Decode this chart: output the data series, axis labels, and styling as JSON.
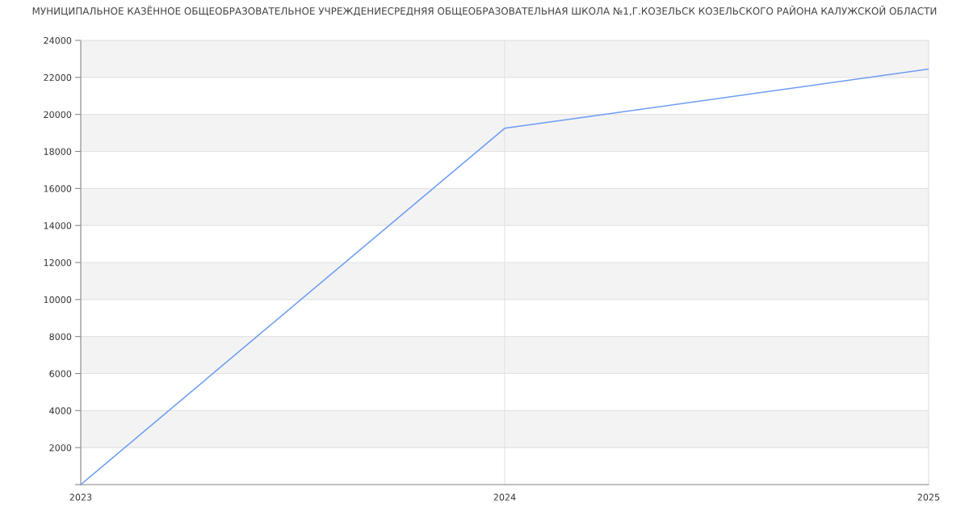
{
  "chart_data": {
    "type": "line",
    "title": "МУНИЦИПАЛЬНОЕ КАЗЁННОЕ ОБЩЕОБРАЗОВАТЕЛЬНОЕ УЧРЕЖДЕНИЕСРЕДНЯЯ ОБЩЕОБРАЗОВАТЕЛЬНАЯ ШКОЛА №1,Г.КОЗЕЛЬСК КОЗЕЛЬСКОГО РАЙОНА КАЛУЖСКОЙ ОБЛАСТИ",
    "x": [
      2023,
      2024,
      2025
    ],
    "series": [
      {
        "color": "#6b9cf3",
        "values": [
          0,
          19250,
          22450
        ]
      }
    ],
    "xlim": [
      2023,
      2025
    ],
    "xticks": [
      2023,
      2024,
      2025
    ],
    "ylim": [
      0,
      24000
    ],
    "yticks": [
      {
        "value": 0,
        "label": null
      },
      2000,
      4000,
      6000,
      8000,
      10000,
      12000,
      14000,
      16000,
      18000,
      20000,
      22000,
      24000
    ],
    "bands": [
      {
        "axis": "y",
        "from": 2000,
        "to": 4000,
        "color": "#f3f3f3"
      },
      {
        "axis": "y",
        "from": 6000,
        "to": 8000,
        "color": "#f3f3f3"
      },
      {
        "axis": "y",
        "from": 10000,
        "to": 12000,
        "color": "#f3f3f3"
      },
      {
        "axis": "y",
        "from": 14000,
        "to": 16000,
        "color": "#f3f3f3"
      },
      {
        "axis": "y",
        "from": 18000,
        "to": 20000,
        "color": "#f3f3f3"
      },
      {
        "axis": "y",
        "from": 22000,
        "to": 24000,
        "color": "#f3f3f3"
      }
    ],
    "grid": true
  }
}
